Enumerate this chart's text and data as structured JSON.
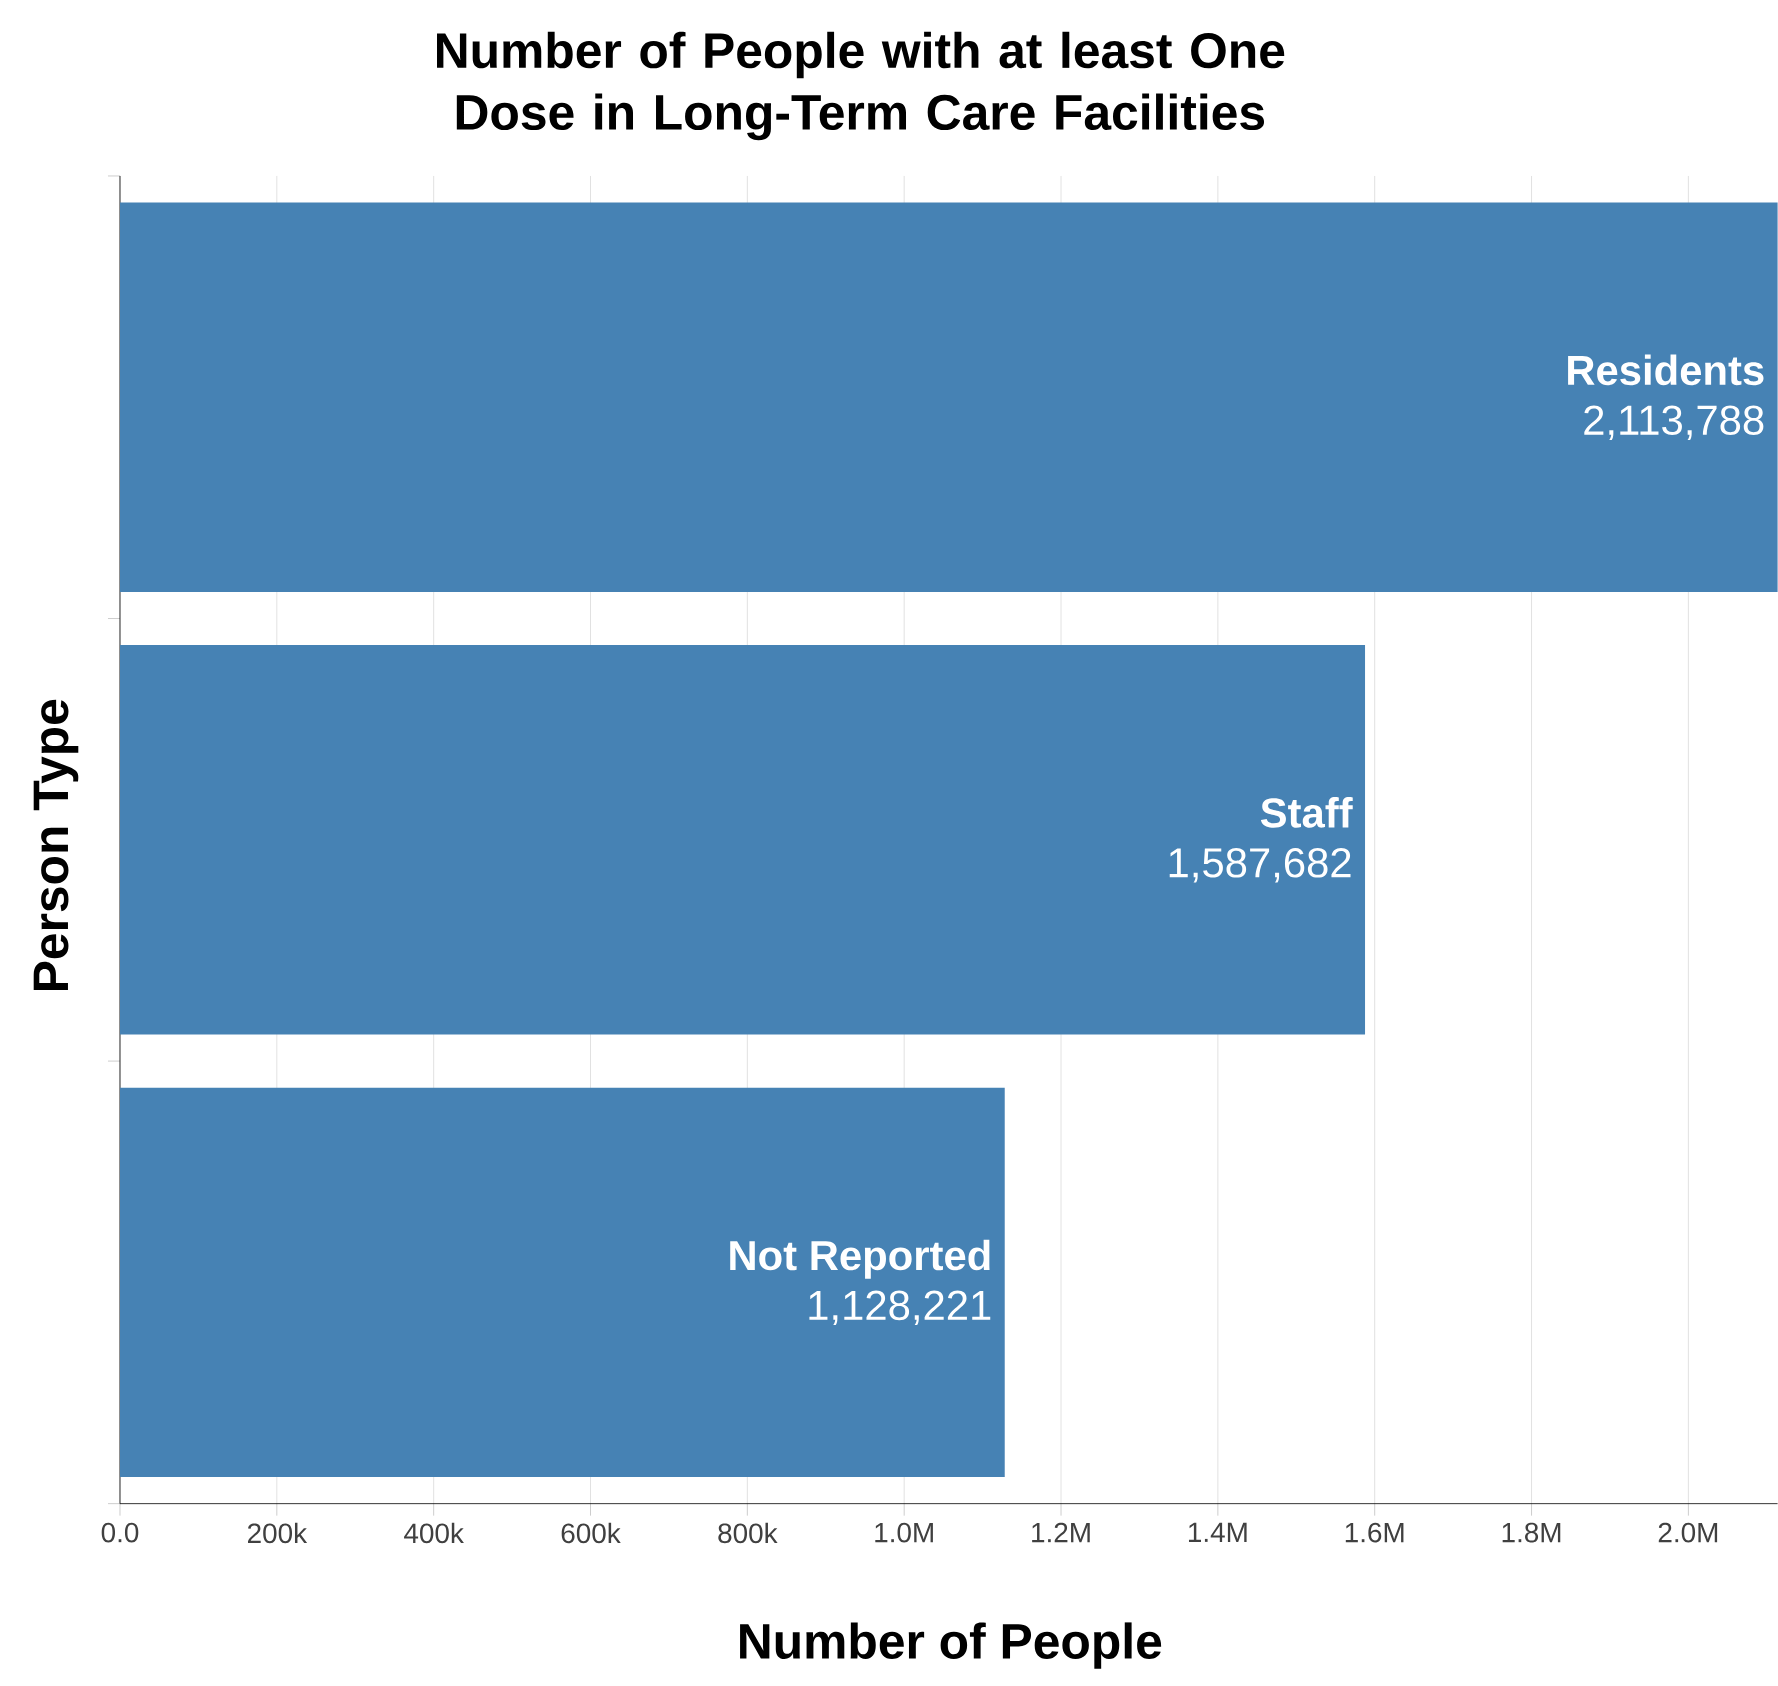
{
  "chart_data": {
    "type": "bar",
    "orientation": "horizontal",
    "title": "Number of People with at least One Dose in Long-Term Care Facilities",
    "xlabel": "Number of People",
    "ylabel": "Person Type",
    "categories": [
      "Residents",
      "Staff",
      "Not Reported"
    ],
    "values": [
      2113788,
      1587682,
      1128221
    ],
    "value_labels": [
      "2,113,788",
      "1,587,682",
      "1,128,221"
    ],
    "color": "#4682b4",
    "xlim": [
      0,
      2113788
    ],
    "xticks": [
      {
        "value": 0,
        "label": "0.0"
      },
      {
        "value": 200000,
        "label": "200k"
      },
      {
        "value": 400000,
        "label": "400k"
      },
      {
        "value": 600000,
        "label": "600k"
      },
      {
        "value": 800000,
        "label": "800k"
      },
      {
        "value": 1000000,
        "label": "1.0M"
      },
      {
        "value": 1200000,
        "label": "1.2M"
      },
      {
        "value": 1400000,
        "label": "1.4M"
      },
      {
        "value": 1600000,
        "label": "1.6M"
      },
      {
        "value": 1800000,
        "label": "1.8M"
      },
      {
        "value": 2000000,
        "label": "2.0M"
      }
    ],
    "grid": "x",
    "tick_labels": "x"
  }
}
